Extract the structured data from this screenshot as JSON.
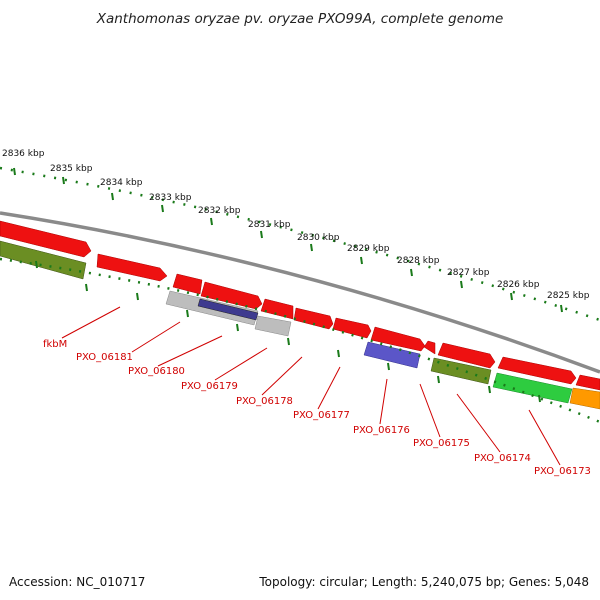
{
  "title": "Xanthomonas oryzae pv. oryzae PXO99A, complete genome",
  "footer": {
    "accession": "Accession: NC_010717",
    "summary": "Topology: circular; Length: 5,240,075 bp; Genes: 5,048"
  },
  "ruler_labels": [
    "2836 kbp",
    "2835 kbp",
    "2834 kbp",
    "2833 kbp",
    "2832 kbp",
    "2831 kbp",
    "2830 kbp",
    "2829 kbp",
    "2828 kbp",
    "2827 kbp",
    "2826 kbp",
    "2825 kbp"
  ],
  "gene_labels": [
    "fkbM",
    "PXO_06181",
    "PXO_06180",
    "PXO_06179",
    "PXO_06178",
    "PXO_06177",
    "PXO_06176",
    "PXO_06175",
    "PXO_06174",
    "PXO_06173"
  ],
  "colors": {
    "cds": "#ee1111",
    "olive": "#6b8e23",
    "gray": "#bdbdbd",
    "blue": "#5b56c8",
    "green": "#2ecc40",
    "orange": "#ff9900",
    "ruler": "#1a7a1a",
    "backbone": "#8a8a8a",
    "label": "#d00000"
  }
}
